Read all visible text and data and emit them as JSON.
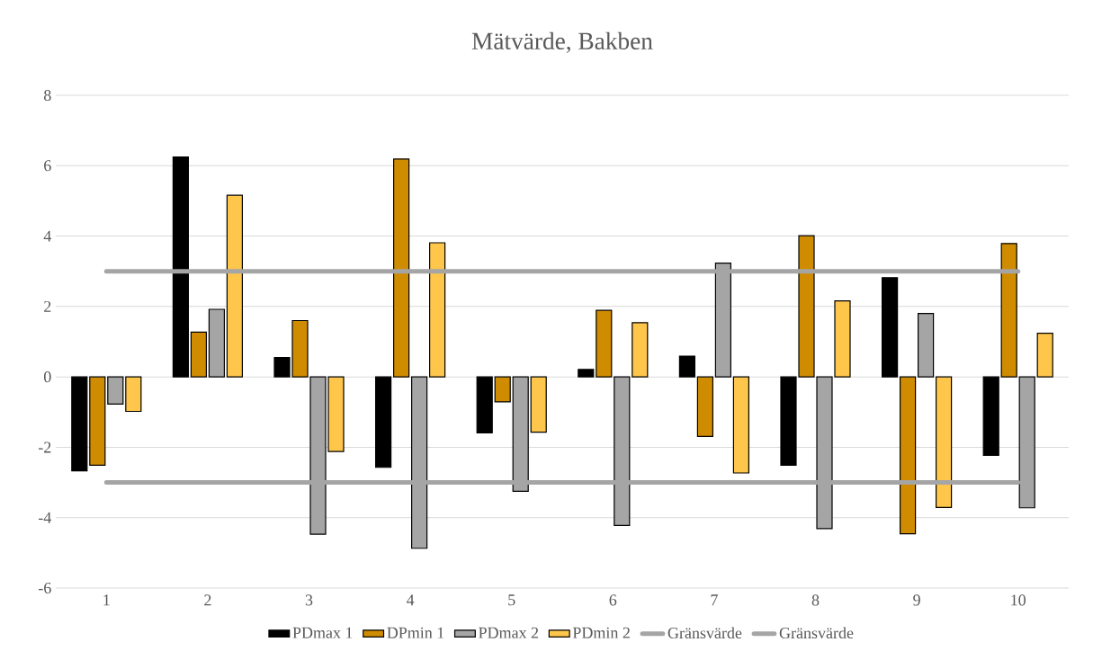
{
  "chart_data": {
    "type": "bar",
    "title": "Mätvärde, Bakben",
    "categories": [
      "1",
      "2",
      "3",
      "4",
      "5",
      "6",
      "7",
      "8",
      "9",
      "10"
    ],
    "series": [
      {
        "name": "PDmax 1",
        "color": "#000000",
        "values": [
          -2.67,
          6.25,
          0.55,
          -2.57,
          -1.59,
          0.21,
          0.59,
          -2.51,
          2.82,
          -2.23
        ]
      },
      {
        "name": "DPmin 1",
        "color": "#d08c00",
        "values": [
          -2.51,
          1.27,
          1.6,
          6.19,
          -0.71,
          1.89,
          -1.69,
          4.01,
          -4.46,
          3.79
        ]
      },
      {
        "name": "PDmax 2",
        "color": "#a5a5a5",
        "values": [
          -0.77,
          1.92,
          -4.47,
          -4.87,
          -3.25,
          -4.22,
          3.23,
          -4.31,
          1.8,
          -3.72
        ]
      },
      {
        "name": "PDmin 2",
        "color": "#ffc64c",
        "values": [
          -0.98,
          5.16,
          -2.12,
          3.81,
          -1.57,
          1.54,
          -2.73,
          2.16,
          -3.71,
          1.24
        ]
      },
      {
        "name": "Gränsvärde",
        "type": "line",
        "color": "#a5a5a5",
        "values": [
          3,
          3,
          3,
          3,
          3,
          3,
          3,
          3,
          3,
          3
        ]
      },
      {
        "name": "Gränsvärde",
        "type": "line",
        "color": "#a5a5a5",
        "values": [
          -3,
          -3,
          -3,
          -3,
          -3,
          -3,
          -3,
          -3,
          -3,
          -3
        ]
      }
    ],
    "ylim": [
      -6,
      8
    ],
    "yticks": [
      -6,
      -4,
      -2,
      0,
      2,
      4,
      6,
      8
    ],
    "grid": "y",
    "legend": "bottom"
  }
}
